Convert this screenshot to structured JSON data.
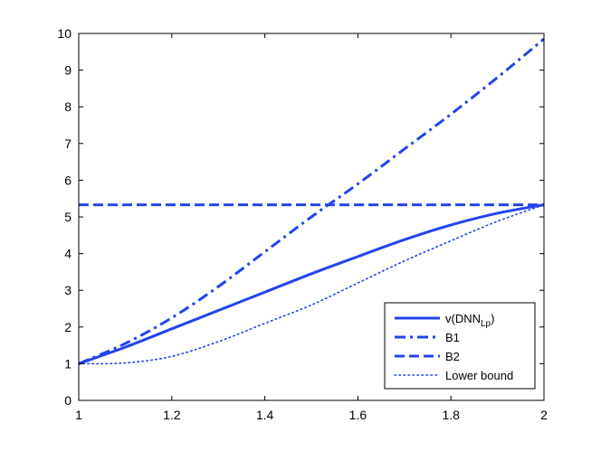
{
  "chart_data": {
    "type": "line",
    "title": "",
    "xlabel": "",
    "ylabel": "",
    "xlim": [
      1,
      2
    ],
    "ylim": [
      0,
      10
    ],
    "x_ticks": [
      1,
      1.2,
      1.4,
      1.6,
      1.8,
      2
    ],
    "x_tick_labels": [
      "1",
      "1.2",
      "1.4",
      "1.6",
      "1.8",
      "2"
    ],
    "y_ticks": [
      0,
      1,
      2,
      3,
      4,
      5,
      6,
      7,
      8,
      9,
      10
    ],
    "y_tick_labels": [
      "0",
      "1",
      "2",
      "3",
      "4",
      "5",
      "6",
      "7",
      "8",
      "9",
      "10"
    ],
    "grid": false,
    "legend_position": "bottom-right",
    "line_color": "#2244ee",
    "x": [
      1.0,
      1.1,
      1.2,
      1.3,
      1.4,
      1.5,
      1.6,
      1.7,
      1.8,
      1.9,
      2.0
    ],
    "series": [
      {
        "name": "v(DNN",
        "name_subscript": "Lp",
        "name_suffix": ")",
        "style": "solid",
        "values": [
          1.0,
          1.45,
          1.95,
          2.45,
          2.95,
          3.45,
          3.92,
          4.38,
          4.78,
          5.1,
          5.33
        ]
      },
      {
        "name": "B1",
        "style": "dashdot",
        "values": [
          1.0,
          1.55,
          2.25,
          3.1,
          4.05,
          5.0,
          5.9,
          6.85,
          7.8,
          8.8,
          9.85
        ]
      },
      {
        "name": "B2",
        "style": "dashed",
        "values": [
          5.33,
          5.33,
          5.33,
          5.33,
          5.33,
          5.33,
          5.33,
          5.33,
          5.33,
          5.33,
          5.33
        ]
      },
      {
        "name": "Lower bound",
        "style": "dotted",
        "values": [
          1.0,
          1.02,
          1.2,
          1.6,
          2.1,
          2.6,
          3.2,
          3.8,
          4.35,
          4.88,
          5.33
        ]
      }
    ]
  }
}
